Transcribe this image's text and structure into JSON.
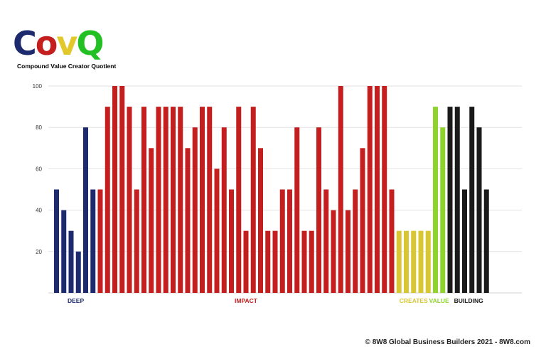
{
  "logo": {
    "letters": [
      {
        "char": "C",
        "color": "#1d2a6e"
      },
      {
        "char": "o",
        "color": "#c41e1e"
      },
      {
        "char": "v",
        "color": "#e2c82a"
      },
      {
        "char": "Q",
        "color": "#22c022"
      }
    ],
    "subtitle": "Compound Value Creator Quotient"
  },
  "footer": "© 8W8 Global Business Builders 2021 - 8W8.com",
  "chart_data": {
    "type": "bar",
    "ylim": [
      0,
      100
    ],
    "yticks": [
      20,
      40,
      60,
      80,
      100
    ],
    "grid": true,
    "groups": [
      {
        "label": "DEEP",
        "color": "#1d2a6e",
        "values": [
          50,
          40,
          30,
          20,
          80,
          50
        ]
      },
      {
        "label": "IMPACT",
        "color": "#c41e1e",
        "values": [
          50,
          90,
          100,
          100,
          90,
          50,
          90,
          70,
          90,
          90,
          90,
          90,
          70,
          80,
          90,
          90,
          60,
          80,
          50,
          90,
          30,
          90,
          70,
          30,
          30,
          50,
          50,
          80,
          30,
          30,
          80,
          50,
          40,
          100,
          40,
          50,
          70,
          100,
          100,
          100,
          50
        ]
      },
      {
        "label": "CREATES",
        "color": "#d8c632",
        "values": [
          30,
          30,
          30,
          30,
          30
        ]
      },
      {
        "label": "VALUE",
        "color": "#8ed42c",
        "values": [
          90,
          80
        ]
      },
      {
        "label": "BUILDING",
        "color": "#1a1a1a",
        "values": [
          90,
          90,
          50,
          90,
          80,
          50
        ]
      }
    ]
  }
}
